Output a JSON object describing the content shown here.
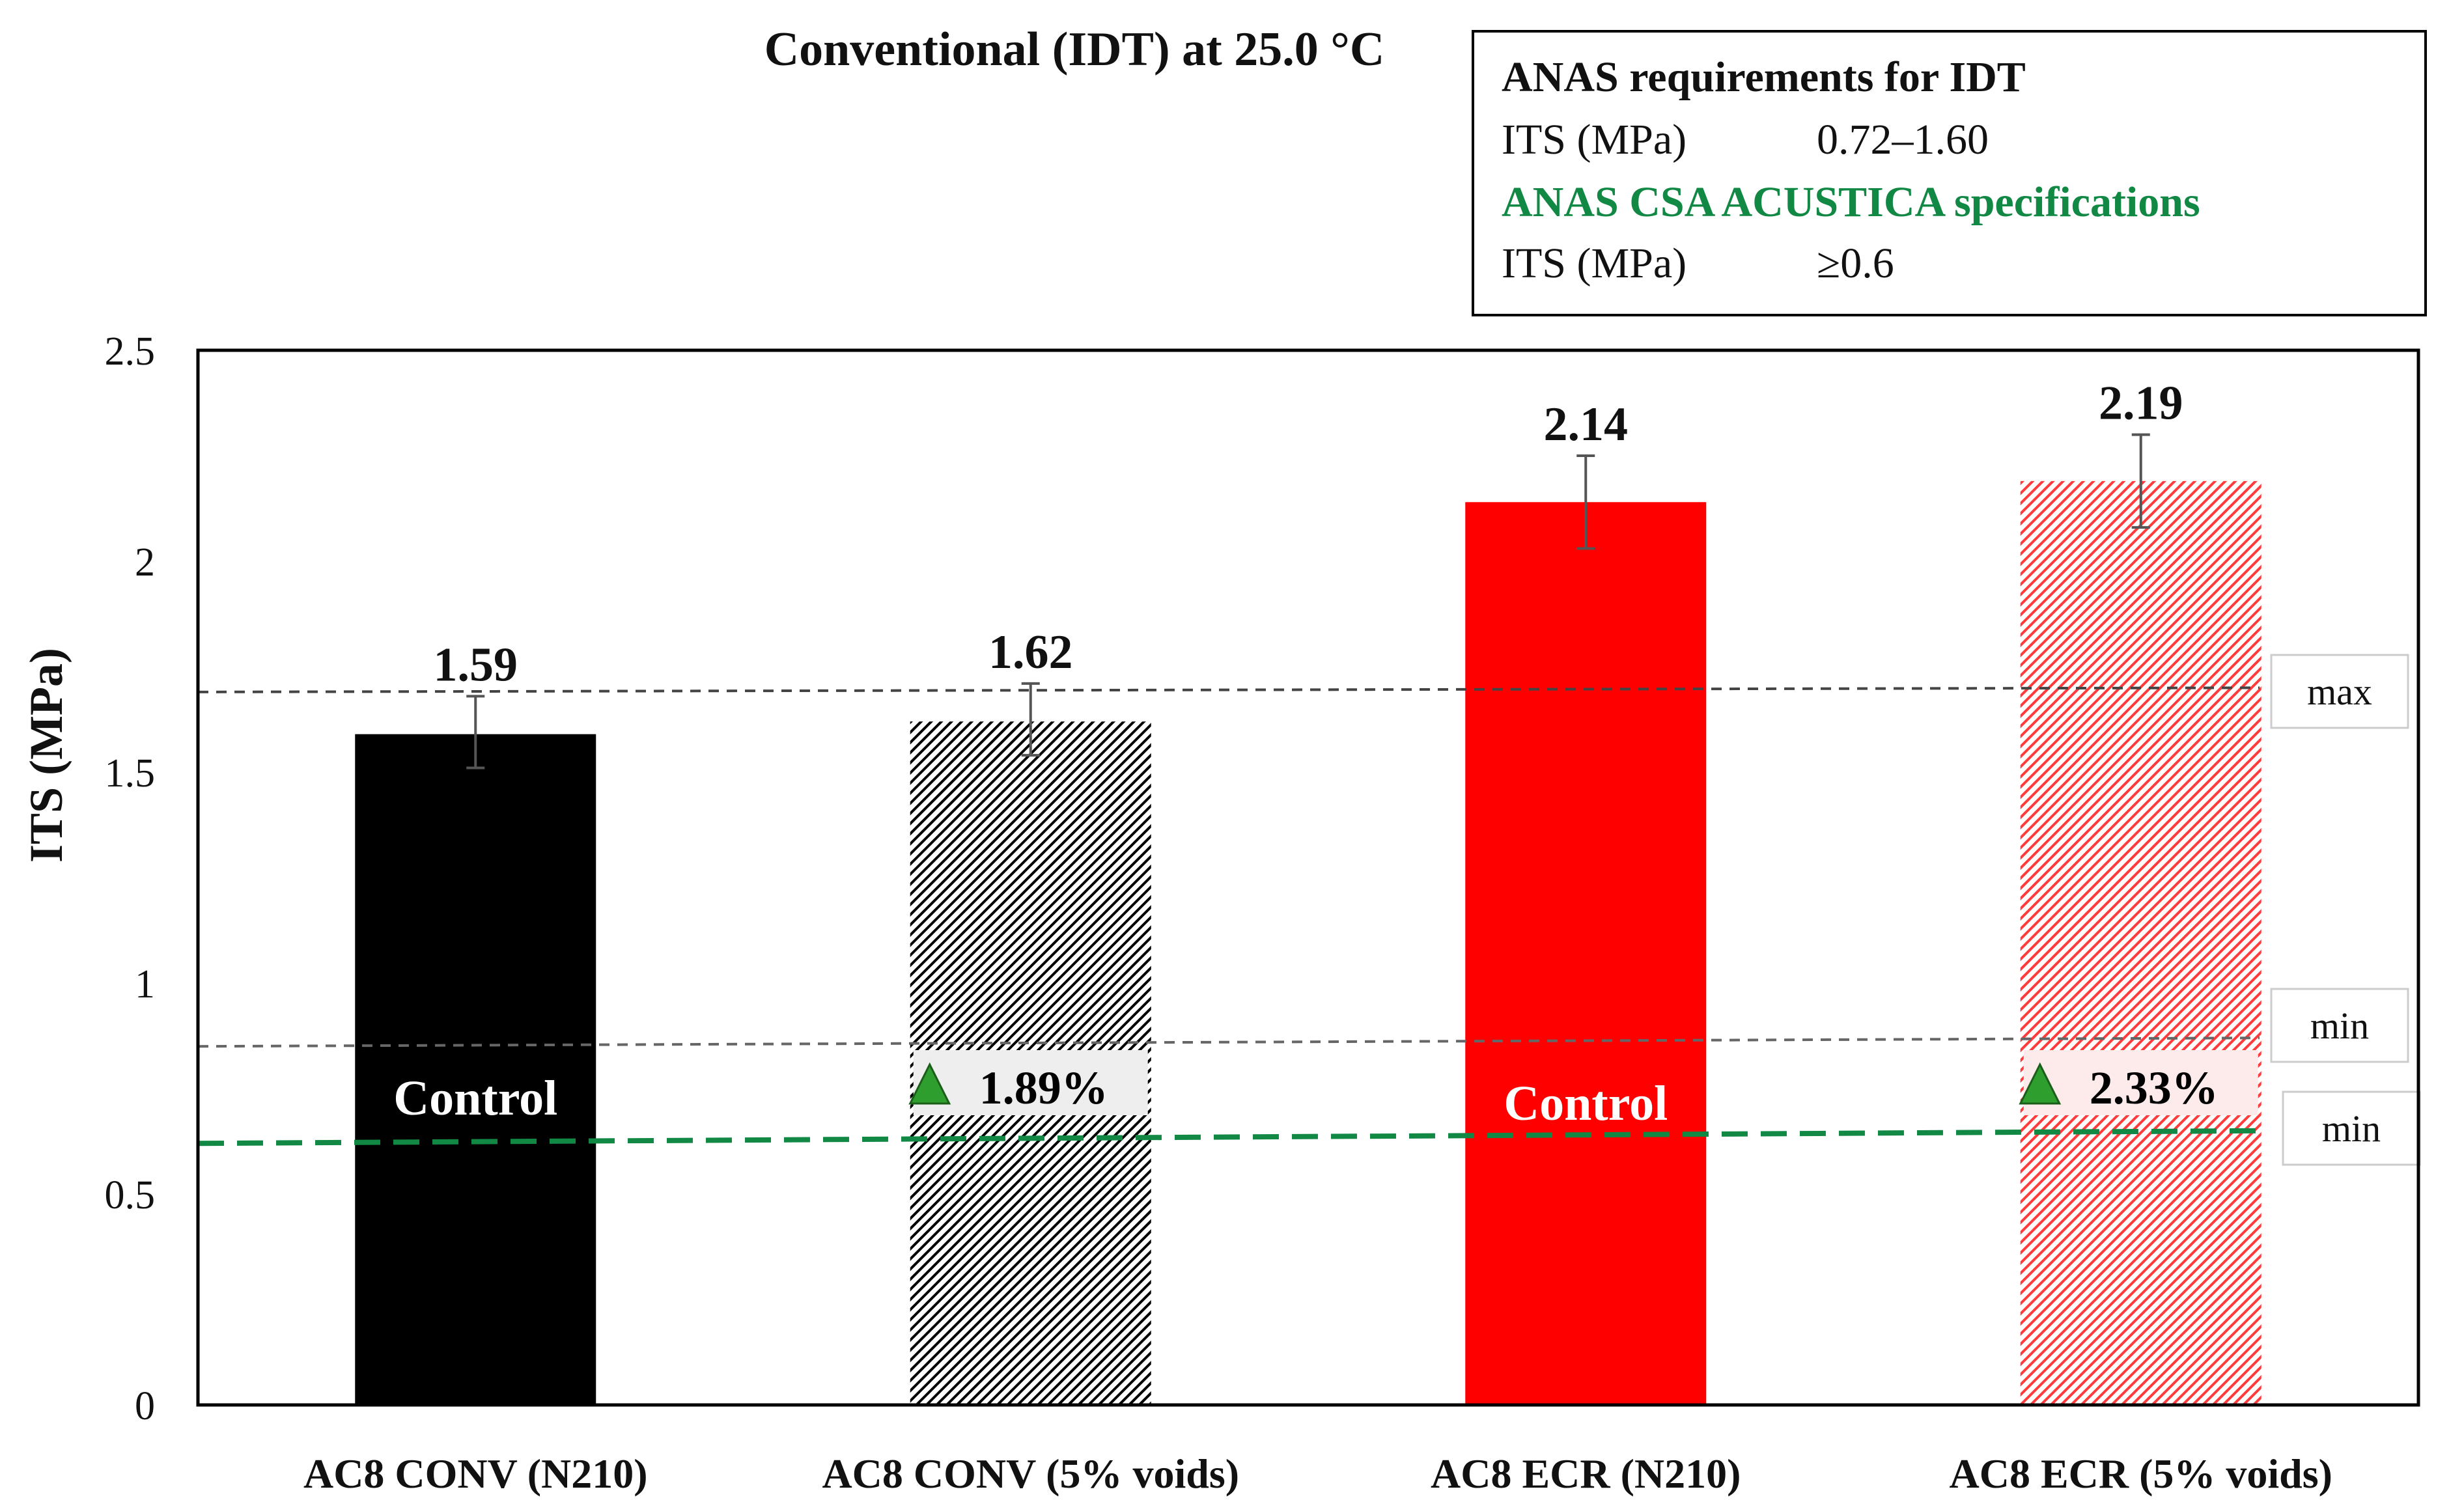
{
  "chart_data": {
    "type": "bar",
    "title": "Conventional (IDT) at 25.0 °C",
    "ylabel": "ITS (MPa)",
    "xlabel": "",
    "ylim": [
      0,
      2.5
    ],
    "yticks": [
      0,
      0.5,
      1,
      1.5,
      2,
      2.5
    ],
    "ytick_labels": [
      "0",
      "0.5",
      "1",
      "1.5",
      "2",
      "2.5"
    ],
    "categories": [
      "AC8 CONV (N210)",
      "AC8 CONV (5% voids)",
      "AC8 ECR (N210)",
      "AC8 ECR (5% voids)"
    ],
    "values": [
      1.59,
      1.62,
      2.14,
      2.19
    ],
    "value_labels": [
      "1.59",
      "1.62",
      "2.14",
      "2.19"
    ],
    "error_low": [
      1.51,
      1.54,
      2.03,
      2.08
    ],
    "error_high": [
      1.68,
      1.71,
      2.25,
      2.3
    ],
    "bar_colors": [
      "#000000",
      "#000000",
      "#ff0000",
      "#ff3b3b"
    ],
    "bar_fill_styles": [
      "solid",
      "hatched",
      "solid",
      "hatched"
    ],
    "bar_annotations": [
      "Control",
      "1.89%",
      "Control",
      "2.33%"
    ],
    "bar_annotation_colors": [
      "#ffffff",
      "#000000",
      "#ffffff",
      "#000000"
    ],
    "annotation_icon": "up-triangle-icon",
    "annotation_icon_color": "#2e9e2e",
    "reference_lines": [
      {
        "name": "anas-max",
        "y_start": 1.69,
        "y_end": 1.7,
        "color": "#444444",
        "label": "max"
      },
      {
        "name": "anas-min",
        "y_start": 0.85,
        "y_end": 0.87,
        "color": "#666666",
        "label": "min"
      },
      {
        "name": "csa-min",
        "y_start": 0.62,
        "y_end": 0.65,
        "color": "#118844",
        "label": "min"
      }
    ],
    "legend": {
      "heading1": "ANAS requirements for IDT",
      "row1_label": "ITS (MPa)",
      "row1_value": "0.72–1.60",
      "heading2": "ANAS CSA ACUSTICA specifications",
      "row2_label": "ITS (MPa)",
      "row2_value": "≥0.6",
      "heading2_color": "#118844",
      "placement": "top-right"
    }
  }
}
